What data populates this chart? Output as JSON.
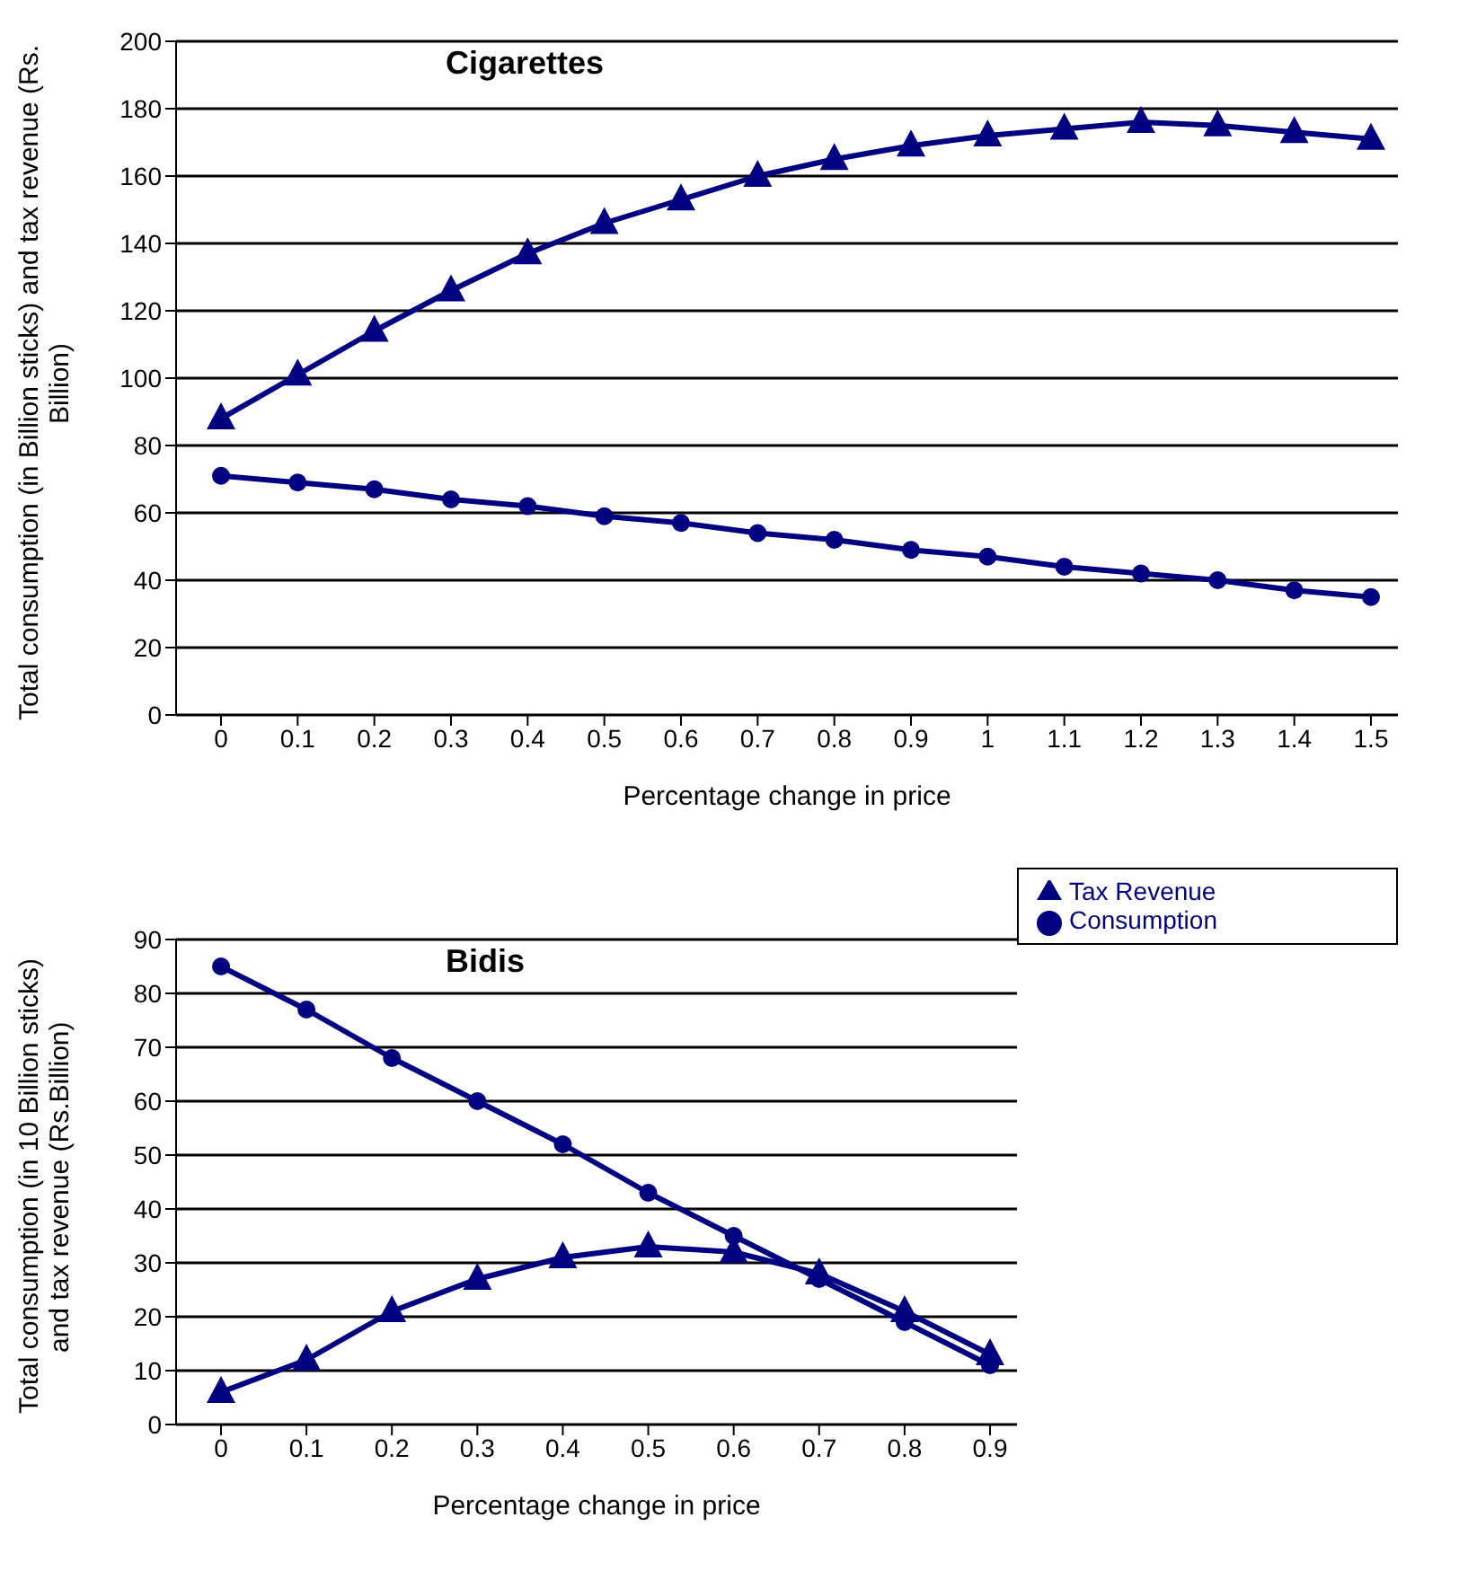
{
  "chart_data": [
    {
      "type": "line",
      "title": "Cigarettes",
      "xlabel": "Percentage change in price",
      "ylabel": "Total consumption (in Billion sticks) and tax revenue (Rs. Billion)",
      "categories": [
        "0",
        "0.1",
        "0.2",
        "0.3",
        "0.4",
        "0.5",
        "0.6",
        "0.7",
        "0.8",
        "0.9",
        "1",
        "1.1",
        "1.2",
        "1.3",
        "1.4",
        "1.5"
      ],
      "series": [
        {
          "color": "#000080",
          "marker": "triangle",
          "values": [
            88,
            101,
            114,
            126,
            137,
            146,
            153,
            160,
            165,
            169,
            172,
            174,
            176,
            175,
            173,
            171
          ]
        },
        {
          "color": "#000080",
          "marker": "circle",
          "values": [
            71,
            69,
            67,
            64,
            62,
            59,
            57,
            54,
            52,
            49,
            47,
            44,
            42,
            40,
            37,
            35
          ]
        }
      ],
      "ylim": [
        0,
        200
      ],
      "yticks": [
        0,
        20,
        40,
        60,
        80,
        100,
        120,
        140,
        160,
        180,
        200
      ],
      "grid": "y",
      "legend": false
    },
    {
      "type": "line",
      "title": "Bidis",
      "xlabel": "Percentage change in price",
      "ylabel": "Total consumption (in 10 Billion sticks) and tax revenue (Rs.Billion)",
      "categories": [
        "0",
        "0.1",
        "0.2",
        "0.3",
        "0.4",
        "0.5",
        "0.6",
        "0.7",
        "0.8",
        "0.9"
      ],
      "series": [
        {
          "name": "Tax Revenue",
          "color": "#000080",
          "marker": "triangle",
          "values": [
            6,
            12,
            21,
            27,
            31,
            33,
            32,
            28,
            21,
            13
          ]
        },
        {
          "name": "Consumption",
          "color": "#000080",
          "marker": "circle",
          "values": [
            85,
            77,
            68,
            60,
            52,
            43,
            35,
            27,
            19,
            11
          ]
        }
      ],
      "ylim": [
        0,
        90
      ],
      "yticks": [
        0,
        10,
        20,
        30,
        40,
        50,
        60,
        70,
        80,
        90
      ],
      "grid": "y",
      "legend": "top right"
    }
  ]
}
